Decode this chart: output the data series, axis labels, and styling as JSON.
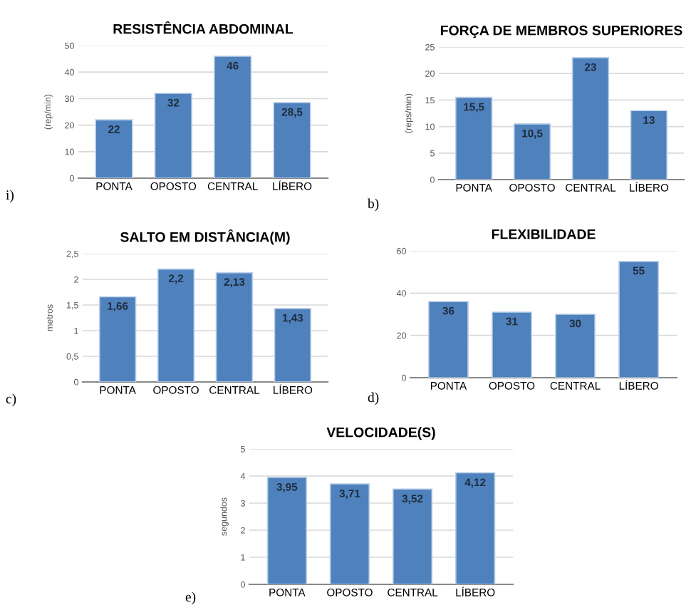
{
  "chart_data": [
    {
      "type": "bar",
      "title": "RESISTÊNCIA ABDOMINAL",
      "ylabel": "(rep/min)",
      "categories": [
        "PONTA",
        "OPOSTO",
        "CENTRAL",
        "LÍBERO"
      ],
      "values": [
        22,
        32,
        46,
        28.5
      ],
      "value_labels": [
        "22",
        "32",
        "46",
        "28,5"
      ],
      "color": "#4f81bd",
      "ylim": [
        0,
        50
      ],
      "yticks": [
        0,
        10,
        20,
        30,
        40,
        50
      ],
      "grid": "y",
      "annotations": [
        "i)"
      ]
    },
    {
      "type": "bar",
      "title": "FORÇA DE MEMBROS SUPERIORES",
      "ylabel": "(reps/min)",
      "categories": [
        "PONTA",
        "OPOSTO",
        "CENTRAL",
        "LÍBERO"
      ],
      "values": [
        15.5,
        10.5,
        23,
        13
      ],
      "value_labels": [
        "15,5",
        "10,5",
        "23",
        "13"
      ],
      "color": "#4f81bd",
      "ylim": [
        0,
        25
      ],
      "yticks": [
        0,
        5,
        10,
        15,
        20,
        25
      ],
      "grid": "y",
      "annotations": [
        "b)"
      ]
    },
    {
      "type": "bar",
      "title": "SALTO EM DISTÂNCIA(M)",
      "ylabel": "metros",
      "categories": [
        "PONTA",
        "OPOSTO",
        "CENTRAL",
        "LÍBERO"
      ],
      "values": [
        1.66,
        2.2,
        2.13,
        1.43
      ],
      "value_labels": [
        "1,66",
        "2,2",
        "2,13",
        "1,43"
      ],
      "color": "#4f81bd",
      "ylim": [
        0,
        2.5
      ],
      "yticks": [
        0,
        {
          "value": 0.5,
          "label": "0,5"
        },
        1,
        {
          "value": 1.5,
          "label": "1,5"
        },
        2,
        {
          "value": 2.5,
          "label": "2,5"
        }
      ],
      "grid": "y",
      "annotations": [
        "c)"
      ]
    },
    {
      "type": "bar",
      "title": "FLEXIBILIDADE",
      "categories": [
        "PONTA",
        "OPOSTO",
        "CENTRAL",
        "LÍBERO"
      ],
      "values": [
        36,
        31,
        30,
        55
      ],
      "value_labels": [
        "36",
        "31",
        "30",
        "55"
      ],
      "color": "#4f81bd",
      "ylim": [
        0,
        60
      ],
      "yticks": [
        0,
        20,
        40,
        60
      ],
      "grid": "y",
      "annotations": [
        "d)"
      ]
    },
    {
      "type": "bar",
      "title": "VELOCIDADE(S)",
      "ylabel": "segundos",
      "categories": [
        "PONTA",
        "OPOSTO",
        "CENTRAL",
        "LÍBERO"
      ],
      "values": [
        3.95,
        3.71,
        3.52,
        4.12
      ],
      "value_labels": [
        "3,95",
        "3,71",
        "3,52",
        "4,12"
      ],
      "color": "#4f81bd",
      "ylim": [
        0,
        5
      ],
      "yticks": [
        0,
        1,
        2,
        3,
        4,
        5
      ],
      "grid": "y",
      "annotations": [
        "e)"
      ]
    }
  ]
}
